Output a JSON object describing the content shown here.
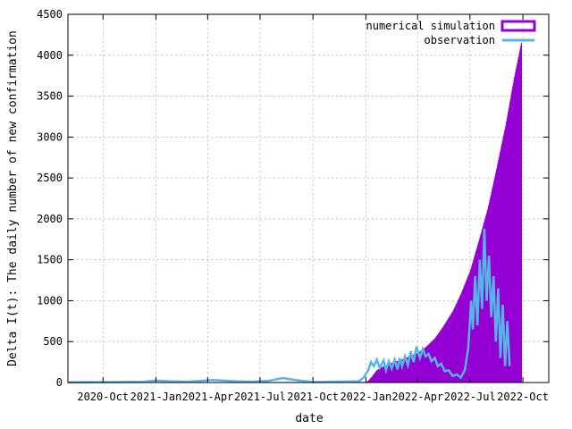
{
  "chart_data": {
    "type": "bar",
    "xlabel": "date",
    "ylabel": "Delta I(t): The daily number of new confirmation",
    "ylim": [
      0,
      4500
    ],
    "xlim": [
      "2020-08-01",
      "2022-11-15"
    ],
    "grid": true,
    "legend_position": "top-right",
    "x_ticks": [
      "2020-Oct",
      "2021-Jan",
      "2021-Apr",
      "2021-Jul",
      "2021-Oct",
      "2022-Jan",
      "2022-Apr",
      "2022-Jul",
      "2022-Oct"
    ],
    "x_tick_dates": [
      "2020-10-01",
      "2021-01-01",
      "2021-04-01",
      "2021-07-01",
      "2021-10-01",
      "2022-01-01",
      "2022-04-01",
      "2022-07-01",
      "2022-10-01"
    ],
    "y_ticks": [
      0,
      500,
      1000,
      1500,
      2000,
      2500,
      3000,
      3500,
      4000,
      4500
    ],
    "series": [
      {
        "name": "numerical simulation",
        "style": "filled-bars",
        "color": "#9400d3",
        "points": [
          [
            "2020-08-01",
            0
          ],
          [
            "2021-12-31",
            5
          ],
          [
            "2022-01-05",
            20
          ],
          [
            "2022-01-10",
            60
          ],
          [
            "2022-01-20",
            150
          ],
          [
            "2022-02-01",
            200
          ],
          [
            "2022-02-15",
            240
          ],
          [
            "2022-03-01",
            270
          ],
          [
            "2022-03-15",
            310
          ],
          [
            "2022-04-01",
            360
          ],
          [
            "2022-04-15",
            430
          ],
          [
            "2022-05-01",
            540
          ],
          [
            "2022-05-15",
            680
          ],
          [
            "2022-06-01",
            870
          ],
          [
            "2022-06-15",
            1080
          ],
          [
            "2022-07-01",
            1360
          ],
          [
            "2022-07-15",
            1700
          ],
          [
            "2022-08-01",
            2130
          ],
          [
            "2022-08-15",
            2580
          ],
          [
            "2022-09-01",
            3150
          ],
          [
            "2022-09-15",
            3700
          ],
          [
            "2022-09-28",
            4150
          ]
        ]
      },
      {
        "name": "observation",
        "style": "line",
        "color": "#56b4e9",
        "points": [
          [
            "2020-08-01",
            3
          ],
          [
            "2020-12-10",
            8
          ],
          [
            "2021-01-01",
            25
          ],
          [
            "2021-01-25",
            15
          ],
          [
            "2021-02-25",
            10
          ],
          [
            "2021-04-10",
            30
          ],
          [
            "2021-05-20",
            15
          ],
          [
            "2021-06-15",
            10
          ],
          [
            "2021-07-15",
            20
          ],
          [
            "2021-08-10",
            55
          ],
          [
            "2021-09-01",
            30
          ],
          [
            "2021-10-01",
            5
          ],
          [
            "2021-12-20",
            15
          ],
          [
            "2021-12-28",
            60
          ],
          [
            "2022-01-05",
            150
          ],
          [
            "2022-01-10",
            250
          ],
          [
            "2022-01-15",
            200
          ],
          [
            "2022-01-20",
            280
          ],
          [
            "2022-01-25",
            180
          ],
          [
            "2022-02-01",
            270
          ],
          [
            "2022-02-05",
            150
          ],
          [
            "2022-02-10",
            260
          ],
          [
            "2022-02-15",
            170
          ],
          [
            "2022-02-20",
            280
          ],
          [
            "2022-02-25",
            160
          ],
          [
            "2022-03-01",
            300
          ],
          [
            "2022-03-05",
            200
          ],
          [
            "2022-03-10",
            320
          ],
          [
            "2022-03-15",
            210
          ],
          [
            "2022-03-20",
            380
          ],
          [
            "2022-03-25",
            250
          ],
          [
            "2022-03-30",
            440
          ],
          [
            "2022-04-05",
            300
          ],
          [
            "2022-04-10",
            410
          ],
          [
            "2022-04-15",
            320
          ],
          [
            "2022-04-20",
            350
          ],
          [
            "2022-04-25",
            260
          ],
          [
            "2022-05-01",
            300
          ],
          [
            "2022-05-06",
            200
          ],
          [
            "2022-05-12",
            230
          ],
          [
            "2022-05-18",
            140
          ],
          [
            "2022-05-25",
            150
          ],
          [
            "2022-06-01",
            80
          ],
          [
            "2022-06-08",
            100
          ],
          [
            "2022-06-15",
            60
          ],
          [
            "2022-06-22",
            150
          ],
          [
            "2022-06-28",
            420
          ],
          [
            "2022-07-03",
            1000
          ],
          [
            "2022-07-06",
            650
          ],
          [
            "2022-07-10",
            1300
          ],
          [
            "2022-07-14",
            700
          ],
          [
            "2022-07-18",
            1500
          ],
          [
            "2022-07-22",
            900
          ],
          [
            "2022-07-26",
            1880
          ],
          [
            "2022-07-30",
            1000
          ],
          [
            "2022-08-03",
            1550
          ],
          [
            "2022-08-07",
            800
          ],
          [
            "2022-08-11",
            1300
          ],
          [
            "2022-08-15",
            500
          ],
          [
            "2022-08-19",
            1150
          ],
          [
            "2022-08-23",
            300
          ],
          [
            "2022-08-27",
            950
          ],
          [
            "2022-08-31",
            200
          ],
          [
            "2022-09-04",
            750
          ],
          [
            "2022-09-08",
            200
          ]
        ]
      }
    ]
  }
}
